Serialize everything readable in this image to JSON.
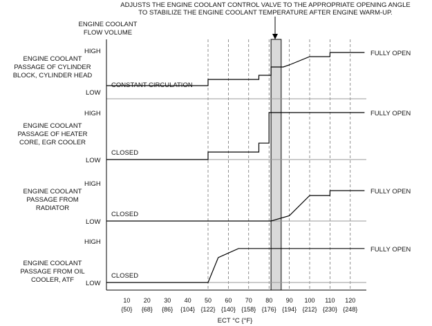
{
  "annotation": {
    "line1": "ADJUSTS THE ENGINE COOLANT CONTROL VALVE TO THE APPROPRIATE OPENING ANGLE",
    "line2": "TO STABILIZE THE ENGINE COOLANT TEMPERATURE AFTER ENGINE WARM-UP."
  },
  "y_axis_title": {
    "line1": "ENGINE COOLANT",
    "line2": "FLOW VOLUME"
  },
  "x_axis_title": "ECT °C {°F}",
  "ticks": [
    {
      "c": "10",
      "f": "{50}"
    },
    {
      "c": "20",
      "f": "{68}"
    },
    {
      "c": "30",
      "f": "{86}"
    },
    {
      "c": "40",
      "f": "{104}"
    },
    {
      "c": "50",
      "f": "{122}"
    },
    {
      "c": "60",
      "f": "{140}"
    },
    {
      "c": "70",
      "f": "{158}"
    },
    {
      "c": "80",
      "f": "{176}"
    },
    {
      "c": "90",
      "f": "{194}"
    },
    {
      "c": "100",
      "f": "{212}"
    },
    {
      "c": "110",
      "f": "{230}"
    },
    {
      "c": "120",
      "f": "{248}"
    }
  ],
  "level_labels": {
    "high": "HIGH",
    "low": "LOW"
  },
  "warmup_band": {
    "from_c": 81,
    "to_c": 86
  },
  "chart_data": {
    "type": "line",
    "x_unit": "°C",
    "panels": [
      {
        "title_lines": [
          "ENGINE COOLANT",
          "PASSAGE OF CYLINDER",
          "BLOCK, CYLINDER HEAD"
        ],
        "low_text": "CONSTANT CIRCULATION",
        "end_text": "FULLY OPEN",
        "series": [
          [
            0,
            0.15
          ],
          [
            50,
            0.15
          ],
          [
            50,
            0.3
          ],
          [
            75,
            0.3
          ],
          [
            75,
            0.4
          ],
          [
            81,
            0.4
          ],
          [
            81,
            0.6
          ],
          [
            87,
            0.6
          ],
          [
            90,
            0.65
          ],
          [
            100,
            0.85
          ],
          [
            110,
            0.85
          ],
          [
            110,
            0.95
          ],
          [
            127,
            0.95
          ]
        ]
      },
      {
        "title_lines": [
          "ENGINE COOLANT",
          "PASSAGE OF HEATER",
          "CORE, EGR COOLER"
        ],
        "low_text": "CLOSED",
        "end_text": "FULLY OPEN",
        "series": [
          [
            0,
            0
          ],
          [
            50,
            0
          ],
          [
            50,
            0.16
          ],
          [
            75,
            0.16
          ],
          [
            75,
            0.35
          ],
          [
            80,
            0.35
          ],
          [
            80,
            1
          ],
          [
            127,
            1
          ]
        ]
      },
      {
        "title_lines": [
          "ENGINE COOLANT",
          "PASSAGE FROM",
          "RADIATOR"
        ],
        "low_text": "CLOSED",
        "end_text": "FULLY OPEN",
        "series": [
          [
            0,
            0
          ],
          [
            81,
            0
          ],
          [
            90,
            0.14
          ],
          [
            100,
            0.67
          ],
          [
            110,
            0.67
          ],
          [
            110,
            0.8
          ],
          [
            127,
            0.8
          ]
        ]
      },
      {
        "title_lines": [
          "ENGINE COOLANT",
          "PASSAGE FROM OIL",
          "COOLER, ATF"
        ],
        "low_text": "CLOSED",
        "end_text": "FULLY OPEN",
        "series": [
          [
            0,
            0
          ],
          [
            50,
            0
          ],
          [
            55,
            0.6
          ],
          [
            65,
            0.82
          ],
          [
            127,
            0.82
          ]
        ]
      }
    ]
  }
}
